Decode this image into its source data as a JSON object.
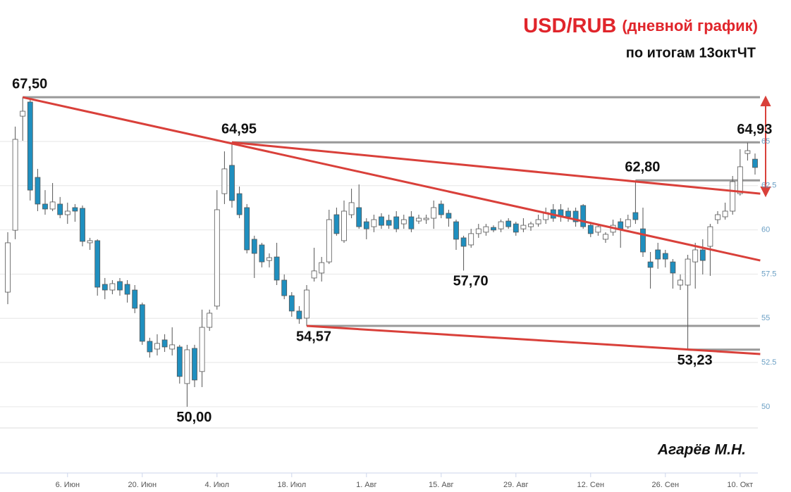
{
  "chart_data": {
    "type": "candlestick",
    "title": "USD/RUB",
    "title_note": "(дневной график)",
    "subtitle": "по итогам 13октЧТ",
    "author": "Агарёв М.Н.",
    "categories": [
      null,
      null,
      null,
      null,
      null,
      null,
      null,
      null,
      "6. Июн",
      null,
      null,
      null,
      null,
      null,
      null,
      null,
      null,
      null,
      "20. Июн",
      null,
      null,
      null,
      null,
      null,
      null,
      null,
      null,
      null,
      "4. Июл",
      null,
      null,
      null,
      null,
      null,
      null,
      null,
      null,
      null,
      "18. Июл",
      null,
      null,
      null,
      null,
      null,
      null,
      null,
      null,
      null,
      "1. Авг",
      null,
      null,
      null,
      null,
      null,
      null,
      null,
      null,
      null,
      "15. Авг",
      null,
      null,
      null,
      null,
      null,
      null,
      null,
      null,
      null,
      "29. Авг",
      null,
      null,
      null,
      null,
      null,
      null,
      null,
      null,
      null,
      "12. Сен",
      null,
      null,
      null,
      null,
      null,
      null,
      null,
      null,
      null,
      "26. Сен",
      null,
      null,
      null,
      null,
      null,
      null,
      null,
      null,
      null,
      "10. Окт",
      null,
      null
    ],
    "open": [
      56.48,
      59.98,
      66.43,
      67.23,
      62.97,
      61.46,
      61.18,
      61.46,
      60.86,
      61.26,
      61.22,
      59.27,
      59.39,
      56.92,
      56.6,
      57.08,
      56.92,
      56.6,
      55.77,
      53.7,
      53.26,
      53.78,
      53.26,
      53.38,
      51.31,
      53.3,
      51.99,
      54.49,
      55.69,
      62.05,
      63.65,
      62.05,
      61.26,
      59.47,
      59.15,
      58.27,
      58.47,
      57.16,
      56.28,
      55.41,
      55.01,
      57.28,
      57.56,
      58.19,
      60.86,
      59.39,
      60.86,
      61.26,
      60.46,
      60.18,
      60.74,
      60.54,
      60.74,
      60.34,
      60.74,
      60.5,
      60.58,
      60.66,
      61.46,
      60.94,
      60.46,
      59.55,
      59.15,
      59.79,
      59.87,
      60.14,
      60.06,
      60.5,
      60.34,
      60.06,
      60.18,
      60.34,
      60.58,
      61.14,
      61.14,
      61.06,
      61.06,
      61.38,
      60.26,
      59.87,
      59.47,
      59.87,
      60.46,
      60.18,
      60.98,
      60.06,
      58.19,
      58.87,
      58.67,
      58.19,
      56.88,
      56.88,
      58.19,
      58.87,
      59.07,
      60.58,
      60.74,
      61.06,
      62.05,
      64.32,
      64.0
    ],
    "high": [
      59.87,
      65.84,
      67.5,
      67.4,
      63.45,
      62.25,
      62.65,
      61.86,
      61.54,
      61.46,
      61.38,
      59.55,
      59.47,
      57.28,
      57.16,
      57.28,
      57.16,
      56.88,
      55.89,
      53.9,
      54.1,
      54.1,
      54.49,
      53.5,
      53.5,
      53.5,
      55.49,
      55.49,
      62.25,
      64.44,
      64.95,
      62.45,
      61.46,
      59.67,
      59.27,
      58.67,
      59.27,
      57.48,
      56.48,
      55.69,
      56.88,
      58.99,
      58.47,
      61.14,
      61.26,
      61.66,
      62.33,
      62.57,
      60.66,
      60.86,
      60.94,
      60.86,
      61.06,
      60.86,
      61.06,
      60.86,
      60.86,
      61.66,
      61.66,
      61.14,
      60.58,
      59.67,
      60.06,
      60.34,
      60.34,
      60.26,
      60.58,
      60.66,
      60.46,
      60.66,
      60.46,
      60.86,
      61.26,
      61.46,
      61.46,
      61.26,
      61.26,
      61.46,
      60.46,
      60.34,
      59.87,
      60.58,
      60.66,
      60.86,
      62.8,
      61.26,
      58.75,
      59.27,
      58.87,
      58.35,
      57.48,
      58.59,
      59.27,
      59.47,
      60.34,
      61.06,
      61.54,
      63.05,
      64.56,
      64.93,
      64.32
    ],
    "low": [
      55.8,
      59.47,
      65.04,
      61.66,
      61.06,
      60.86,
      61.06,
      60.66,
      60.34,
      60.46,
      59.07,
      58.87,
      56.28,
      56.08,
      56.36,
      56.28,
      55.89,
      55.29,
      53.5,
      52.78,
      52.9,
      53.1,
      52.9,
      51.31,
      50.0,
      51.11,
      51.11,
      54.29,
      55.49,
      61.46,
      61.26,
      60.66,
      58.67,
      57.28,
      57.88,
      57.88,
      56.88,
      56.08,
      55.09,
      54.69,
      54.57,
      57.08,
      57.08,
      58.07,
      59.67,
      59.27,
      60.66,
      60.06,
      59.47,
      59.87,
      60.06,
      60.06,
      59.87,
      60.06,
      59.87,
      60.34,
      60.34,
      60.06,
      60.66,
      60.18,
      58.87,
      57.7,
      58.99,
      59.55,
      59.67,
      59.87,
      59.87,
      60.06,
      59.67,
      59.87,
      59.95,
      60.18,
      60.34,
      60.46,
      60.46,
      60.46,
      60.18,
      60.06,
      59.59,
      59.67,
      59.27,
      59.67,
      58.99,
      60.06,
      60.34,
      58.47,
      56.68,
      57.8,
      57.88,
      56.68,
      56.6,
      53.23,
      56.68,
      57.48,
      57.4,
      60.34,
      60.58,
      60.86,
      61.94,
      63.92,
      63.13
    ],
    "close": [
      59.27,
      65.12,
      66.71,
      62.25,
      61.46,
      61.18,
      61.58,
      60.86,
      61.06,
      61.06,
      59.35,
      59.39,
      56.76,
      56.6,
      56.96,
      56.6,
      56.36,
      55.57,
      53.7,
      53.1,
      53.58,
      53.38,
      53.5,
      51.71,
      53.22,
      51.51,
      54.49,
      55.29,
      61.14,
      63.45,
      61.66,
      60.86,
      58.87,
      58.67,
      58.19,
      58.43,
      57.16,
      56.28,
      55.41,
      54.97,
      56.6,
      57.68,
      58.15,
      60.58,
      59.79,
      61.06,
      61.54,
      60.18,
      60.06,
      60.58,
      60.26,
      60.26,
      60.06,
      60.58,
      60.06,
      60.66,
      60.66,
      61.26,
      60.86,
      60.66,
      59.47,
      59.07,
      59.79,
      60.06,
      60.18,
      59.99,
      60.46,
      60.18,
      59.87,
      60.26,
      60.34,
      60.58,
      60.98,
      60.66,
      60.74,
      60.74,
      60.46,
      60.18,
      59.79,
      60.18,
      59.75,
      60.26,
      60.06,
      60.58,
      60.58,
      58.75,
      57.88,
      58.35,
      58.35,
      57.56,
      57.16,
      58.35,
      58.87,
      58.27,
      60.18,
      60.86,
      61.06,
      62.73,
      63.57,
      64.48,
      63.53
    ],
    "up_color": "#ffffff",
    "down_color": "#1f8fbf",
    "wick_color": "#555555",
    "ylim": [
      48.8,
      73
    ],
    "yticks": [
      50,
      52.5,
      55,
      57.5,
      60,
      62.5,
      65
    ],
    "grid": true,
    "annotations": [
      {
        "category": 2,
        "value": 67.5,
        "label": "67,50"
      },
      {
        "category": 30,
        "value": 64.95,
        "label": "64,95"
      },
      {
        "category": 40,
        "value": 54.57,
        "label": "54,57"
      },
      {
        "category": 24,
        "value": 50.0,
        "label": "50,00"
      },
      {
        "category": 61,
        "value": 57.7,
        "label": "57,70"
      },
      {
        "category": 84,
        "value": 62.8,
        "label": "62,80"
      },
      {
        "category": 91,
        "value": 53.23,
        "label": "53,23"
      },
      {
        "category": 99,
        "value": 64.93,
        "label": "64,93"
      }
    ],
    "levels": [
      {
        "from": 2,
        "value": 67.5
      },
      {
        "from": 30,
        "value": 64.95
      },
      {
        "from": 84,
        "value": 62.8
      },
      {
        "from": 40,
        "value": 54.57
      },
      {
        "from": 91,
        "value": 53.23
      }
    ],
    "level_color": "#999999",
    "trendlines": [
      {
        "from": [
          2,
          67.5
        ],
        "to": [
          100.7,
          58.27
        ]
      },
      {
        "from": [
          30,
          64.95
        ],
        "to": [
          100.7,
          62.05
        ]
      },
      {
        "from": [
          40,
          54.57
        ],
        "to": [
          100.7,
          52.98
        ]
      }
    ],
    "trend_color": "#d9403a"
  }
}
